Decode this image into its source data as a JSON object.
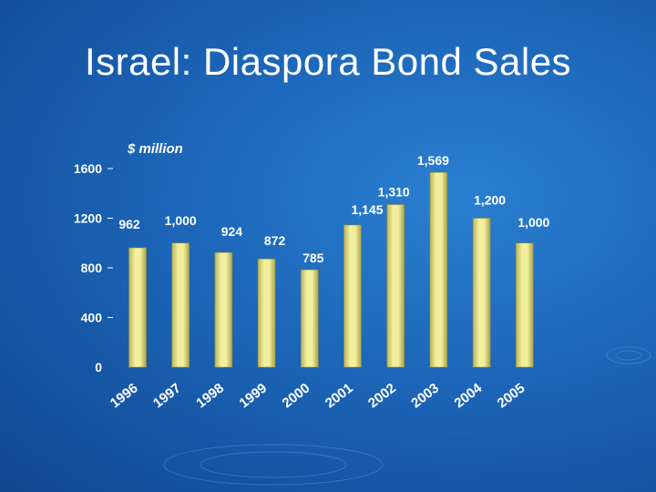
{
  "slide": {
    "title": "Israel: Diaspora Bond Sales"
  },
  "chart_data": {
    "type": "bar",
    "unit_label": "$ million",
    "categories": [
      "1996",
      "1997",
      "1998",
      "1999",
      "2000",
      "2001",
      "2002",
      "2003",
      "2004",
      "2005"
    ],
    "values": [
      962,
      1000,
      924,
      872,
      785,
      1145,
      1310,
      1569,
      1200,
      1000
    ],
    "data_labels": [
      "962",
      "1,000",
      "924",
      "872",
      "785",
      "1,145",
      "1,310",
      "1,569",
      "1,200",
      "1,000"
    ],
    "yticks": [
      0,
      400,
      800,
      1200,
      1600
    ],
    "ylim": [
      0,
      1600
    ],
    "bar_color": "#e8e48a",
    "text_color": "#ffffff"
  }
}
